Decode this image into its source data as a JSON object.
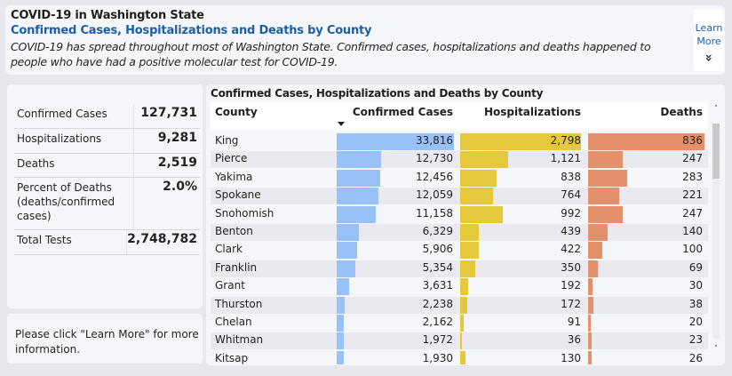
{
  "header": {
    "title": "COVID-19 in Washington State",
    "subtitle": "Confirmed Cases, Hospitalizations and Deaths by County",
    "description": "COVID-19 has spread throughout most of Washington State. Confirmed cases, hospitalizations and deaths happened to people who have had a positive molecular test for COVID-19.",
    "learn_more": {
      "line1": "Learn",
      "line2": "More",
      "icon": "double-chevron-down-icon",
      "glyph": "»"
    }
  },
  "summary": {
    "rows": [
      {
        "label": "Confirmed Cases",
        "value": "127,731"
      },
      {
        "label": "Hospitalizations",
        "value": "9,281"
      },
      {
        "label": "Deaths",
        "value": "2,519"
      },
      {
        "label": "Percent of Deaths (deaths/confirmed cases)",
        "value": "2.0%"
      },
      {
        "label": "Total Tests",
        "value": "2,748,782"
      }
    ]
  },
  "note": "Please click \"Learn More\" for more information.",
  "colors": {
    "cases_bar": "#97c1f7",
    "hospitalizations_bar": "#e6c83c",
    "deaths_bar": "#e3906d",
    "subtitle": "#1a5fa8"
  },
  "table": {
    "title": "Confirmed Cases, Hospitalizations and Deaths by County",
    "columns": [
      "County",
      "Confirmed Cases",
      "Hospitalizations",
      "Deaths"
    ],
    "sort": {
      "column": "Confirmed Cases",
      "direction": "descending"
    },
    "scroll": {
      "up_glyph": "˄",
      "down_glyph": "˅"
    }
  },
  "chart_data": {
    "type": "table",
    "title": "Confirmed Cases, Hospitalizations and Deaths by County",
    "columns": [
      "County",
      "Confirmed Cases",
      "Hospitalizations",
      "Deaths"
    ],
    "categories": [
      "King",
      "Pierce",
      "Yakima",
      "Spokane",
      "Snohomish",
      "Benton",
      "Clark",
      "Franklin",
      "Grant",
      "Thurston",
      "Chelan",
      "Whitman",
      "Kitsap"
    ],
    "series": [
      {
        "name": "Confirmed Cases",
        "values": [
          33816,
          12730,
          12456,
          12059,
          11158,
          6329,
          5906,
          5354,
          3631,
          2238,
          2162,
          1972,
          1930
        ]
      },
      {
        "name": "Hospitalizations",
        "values": [
          2798,
          1121,
          838,
          764,
          992,
          439,
          422,
          350,
          192,
          172,
          91,
          36,
          130
        ]
      },
      {
        "name": "Deaths",
        "values": [
          836,
          247,
          283,
          221,
          247,
          140,
          100,
          69,
          30,
          38,
          20,
          23,
          26
        ]
      }
    ]
  }
}
